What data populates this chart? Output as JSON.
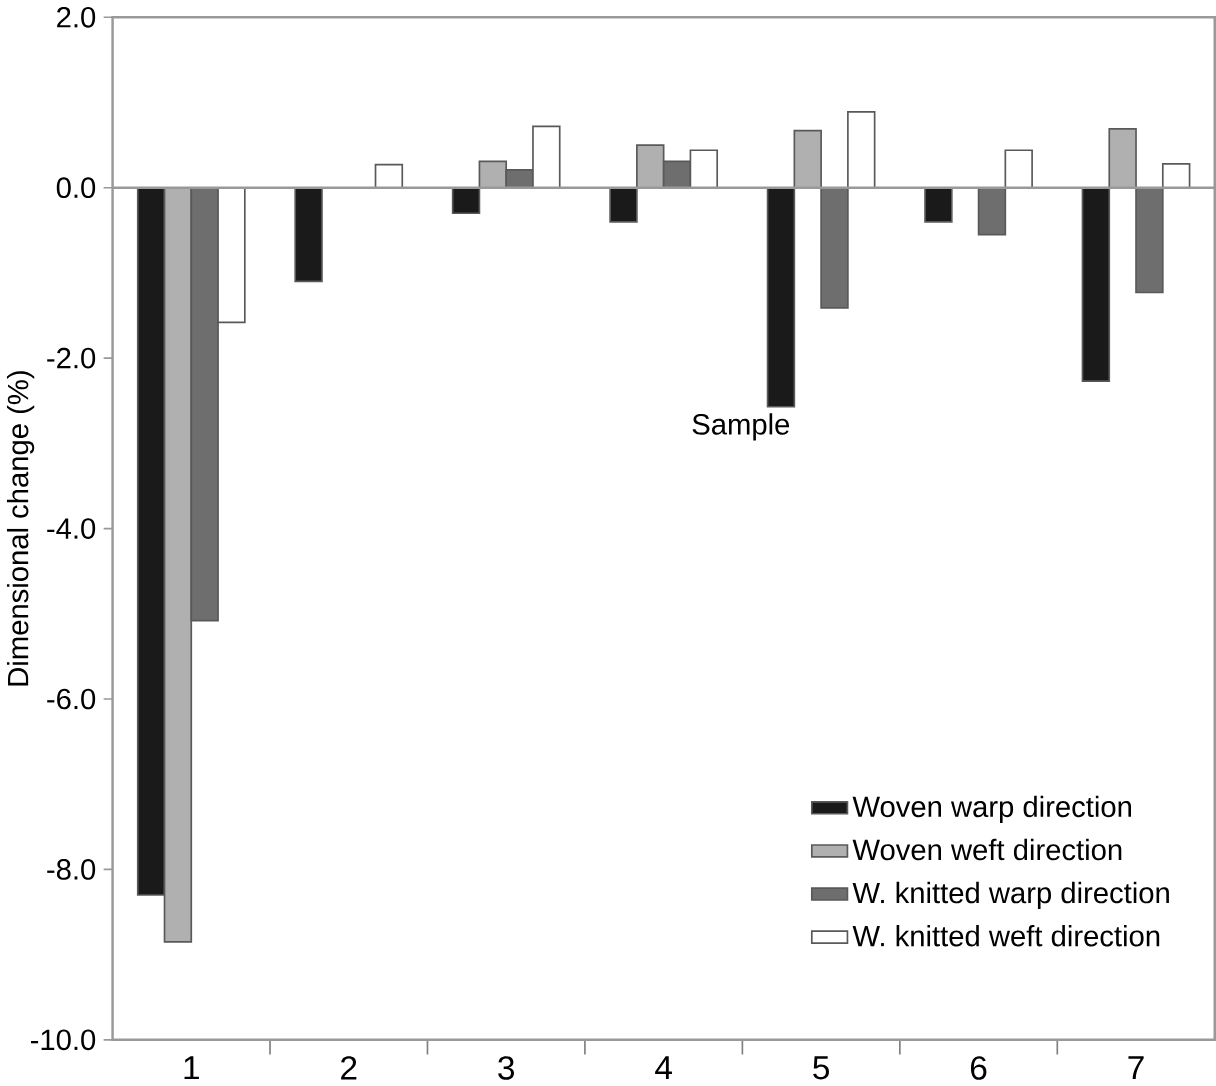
{
  "chart_data": {
    "type": "bar",
    "ylabel": "Dimensional change (%)",
    "xlabel": "Sample",
    "categories": [
      "1",
      "2",
      "3",
      "4",
      "5",
      "6",
      "7"
    ],
    "series": [
      {
        "name": "Woven warp direction",
        "color": "#1a1a1a",
        "values": [
          -8.3,
          -1.1,
          -0.3,
          -0.4,
          -2.57,
          -0.4,
          -2.27
        ]
      },
      {
        "name": "Woven weft direction",
        "color": "#b0b0b0",
        "values": [
          -8.85,
          null,
          0.31,
          0.5,
          0.67,
          null,
          0.69
        ]
      },
      {
        "name": "W. knitted warp direction",
        "color": "#6e6e6e",
        "values": [
          -5.08,
          null,
          0.21,
          0.31,
          -1.41,
          -0.55,
          -1.23
        ]
      },
      {
        "name": "W. knitted weft direction",
        "color": "#ffffff",
        "values": [
          -1.58,
          0.27,
          0.72,
          0.44,
          0.89,
          0.44,
          0.28
        ]
      }
    ],
    "ylim": [
      -10,
      2
    ],
    "yticks": [
      {
        "value": -10,
        "label": "-10.0"
      },
      {
        "value": -8,
        "label": "-8.0"
      },
      {
        "value": -6,
        "label": "-6.0"
      },
      {
        "value": -4,
        "label": "-4.0"
      },
      {
        "value": -2,
        "label": "-2.0"
      },
      {
        "value": 0,
        "label": "0.0"
      },
      {
        "value": 2,
        "label": "2.0"
      }
    ],
    "ref_lines": [
      {
        "axis": "y",
        "value": 0
      }
    ],
    "legend": "bottom right"
  }
}
